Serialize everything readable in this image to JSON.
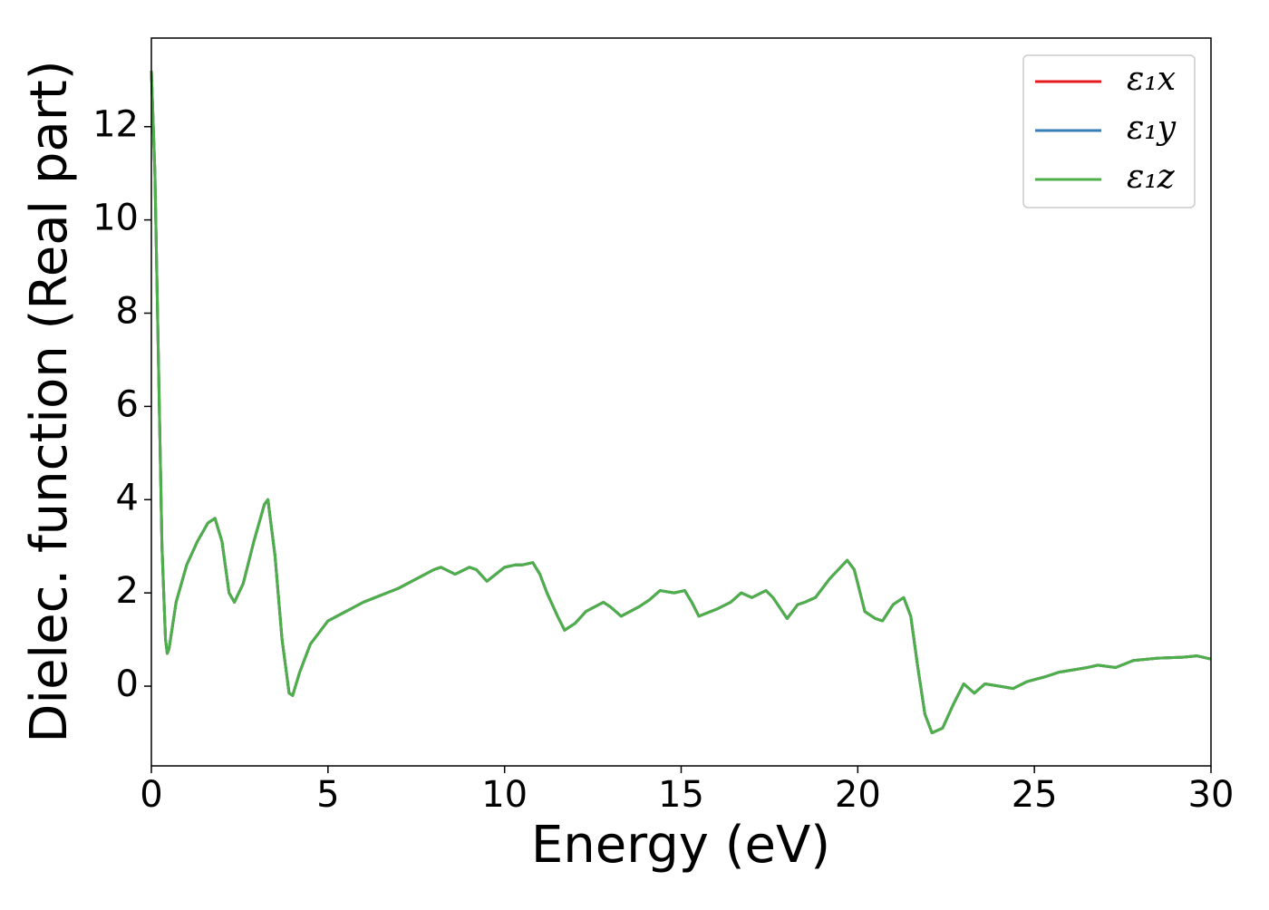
{
  "chart_data": {
    "type": "line",
    "xlabel": "Energy (eV)",
    "ylabel": "Dielec. function (Real part)",
    "x": [
      0.0,
      0.1,
      0.2,
      0.3,
      0.4,
      0.45,
      0.5,
      0.7,
      1.0,
      1.3,
      1.6,
      1.8,
      2.0,
      2.2,
      2.35,
      2.6,
      2.9,
      3.2,
      3.3,
      3.5,
      3.7,
      3.9,
      4.0,
      4.2,
      4.5,
      5.0,
      6,
      7,
      8,
      8.2,
      8.6,
      9.0,
      9.2,
      9.5,
      10,
      10.3,
      10.5,
      10.8,
      11.0,
      11.2,
      11.5,
      11.7,
      12.0,
      12.3,
      12.8,
      13.0,
      13.3,
      13.8,
      14.1,
      14.4,
      14.8,
      15.1,
      15.3,
      15.5,
      16,
      16.4,
      16.7,
      17.0,
      17.4,
      17.6,
      18.0,
      18.3,
      18.5,
      18.8,
      19.2,
      19.7,
      19.9,
      20.2,
      20.5,
      20.7,
      21.0,
      21.3,
      21.5,
      21.7,
      21.9,
      22.1,
      22.4,
      22.7,
      23.0,
      23.3,
      23.6,
      24,
      24.4,
      24.8,
      25.3,
      25.7,
      26.5,
      26.8,
      27.3,
      27.8,
      28.5,
      29.2,
      29.6,
      30
    ],
    "series": [
      {
        "name": "ε₁x",
        "color": "#e41a1c",
        "values": [
          13.2,
          11,
          7,
          3,
          1.0,
          0.7,
          0.8,
          1.8,
          2.6,
          3.1,
          3.5,
          3.6,
          3.1,
          2.0,
          1.8,
          2.2,
          3.1,
          3.9,
          4.0,
          2.8,
          1.0,
          -0.15,
          -0.2,
          0.3,
          0.9,
          1.4,
          1.8,
          2.1,
          2.5,
          2.55,
          2.4,
          2.55,
          2.5,
          2.25,
          2.55,
          2.6,
          2.6,
          2.65,
          2.4,
          2.0,
          1.5,
          1.2,
          1.35,
          1.6,
          1.8,
          1.7,
          1.5,
          1.7,
          1.85,
          2.05,
          2.0,
          2.05,
          1.8,
          1.5,
          1.65,
          1.8,
          2.0,
          1.9,
          2.05,
          1.9,
          1.45,
          1.75,
          1.8,
          1.9,
          2.3,
          2.7,
          2.5,
          1.6,
          1.45,
          1.4,
          1.75,
          1.9,
          1.5,
          0.4,
          -0.6,
          -1.0,
          -0.9,
          -0.4,
          0.05,
          -0.15,
          0.05,
          0.0,
          -0.05,
          0.1,
          0.2,
          0.3,
          0.4,
          0.45,
          0.4,
          0.55,
          0.6,
          0.62,
          0.65,
          0.58
        ]
      },
      {
        "name": "ε₁y",
        "color": "#377eb8",
        "values": [
          13.2,
          11,
          7,
          3,
          1.0,
          0.7,
          0.8,
          1.8,
          2.6,
          3.1,
          3.5,
          3.6,
          3.1,
          2.0,
          1.8,
          2.2,
          3.1,
          3.9,
          4.0,
          2.8,
          1.0,
          -0.15,
          -0.2,
          0.3,
          0.9,
          1.4,
          1.8,
          2.1,
          2.5,
          2.55,
          2.4,
          2.55,
          2.5,
          2.25,
          2.55,
          2.6,
          2.6,
          2.65,
          2.4,
          2.0,
          1.5,
          1.2,
          1.35,
          1.6,
          1.8,
          1.7,
          1.5,
          1.7,
          1.85,
          2.05,
          2.0,
          2.05,
          1.8,
          1.5,
          1.65,
          1.8,
          2.0,
          1.9,
          2.05,
          1.9,
          1.45,
          1.75,
          1.8,
          1.9,
          2.3,
          2.7,
          2.5,
          1.6,
          1.45,
          1.4,
          1.75,
          1.9,
          1.5,
          0.4,
          -0.6,
          -1.0,
          -0.9,
          -0.4,
          0.05,
          -0.15,
          0.05,
          0.0,
          -0.05,
          0.1,
          0.2,
          0.3,
          0.4,
          0.45,
          0.4,
          0.55,
          0.6,
          0.62,
          0.65,
          0.58
        ]
      },
      {
        "name": "ε₁z",
        "color": "#4daf4a",
        "values": [
          13.2,
          11,
          7,
          3,
          1.0,
          0.7,
          0.8,
          1.8,
          2.6,
          3.1,
          3.5,
          3.6,
          3.1,
          2.0,
          1.8,
          2.2,
          3.1,
          3.9,
          4.0,
          2.8,
          1.0,
          -0.15,
          -0.2,
          0.3,
          0.9,
          1.4,
          1.8,
          2.1,
          2.5,
          2.55,
          2.4,
          2.55,
          2.5,
          2.25,
          2.55,
          2.6,
          2.6,
          2.65,
          2.4,
          2.0,
          1.5,
          1.2,
          1.35,
          1.6,
          1.8,
          1.7,
          1.5,
          1.7,
          1.85,
          2.05,
          2.0,
          2.05,
          1.8,
          1.5,
          1.65,
          1.8,
          2.0,
          1.9,
          2.05,
          1.9,
          1.45,
          1.75,
          1.8,
          1.9,
          2.3,
          2.7,
          2.5,
          1.6,
          1.45,
          1.4,
          1.75,
          1.9,
          1.5,
          0.4,
          -0.6,
          -1.0,
          -0.9,
          -0.4,
          0.05,
          -0.15,
          0.05,
          0.0,
          -0.05,
          0.1,
          0.2,
          0.3,
          0.4,
          0.45,
          0.4,
          0.55,
          0.6,
          0.62,
          0.65,
          0.58
        ]
      }
    ],
    "xlim": [
      0,
      30
    ],
    "xticks": [
      0,
      5,
      10,
      15,
      20,
      25,
      30
    ],
    "ylim": [
      -1.71,
      13.9
    ],
    "yticks": [
      0,
      2,
      4,
      6,
      8,
      10,
      12
    ],
    "grid": false,
    "legend": "upper right"
  }
}
